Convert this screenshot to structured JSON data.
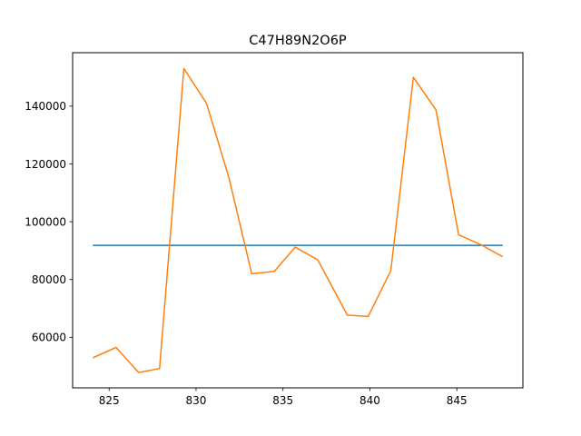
{
  "chart_data": {
    "type": "line",
    "title": "C47H89N2O6P",
    "xlabel": "",
    "ylabel": "",
    "xlim": [
      822.9,
      848.8
    ],
    "ylim": [
      42500,
      158500
    ],
    "x_ticks": [
      825,
      830,
      835,
      840,
      845
    ],
    "y_ticks": [
      60000,
      80000,
      100000,
      120000,
      140000
    ],
    "grid": false,
    "series": [
      {
        "color": "#1f77b4",
        "x": [
          824.1,
          847.6
        ],
        "y": [
          91800,
          91800
        ]
      },
      {
        "color": "#ff7f0e",
        "x": [
          824.1,
          825.4,
          826.7,
          827.9,
          829.3,
          830.6,
          831.9,
          833.2,
          834.5,
          835.7,
          837.0,
          838.7,
          839.9,
          841.2,
          842.5,
          843.8,
          845.1,
          846.4,
          847.6
        ],
        "y": [
          53000,
          56500,
          47800,
          49200,
          153000,
          141000,
          115000,
          82000,
          82800,
          91200,
          86800,
          67700,
          67200,
          83000,
          150000,
          138700,
          95500,
          92000,
          88000
        ]
      }
    ]
  }
}
